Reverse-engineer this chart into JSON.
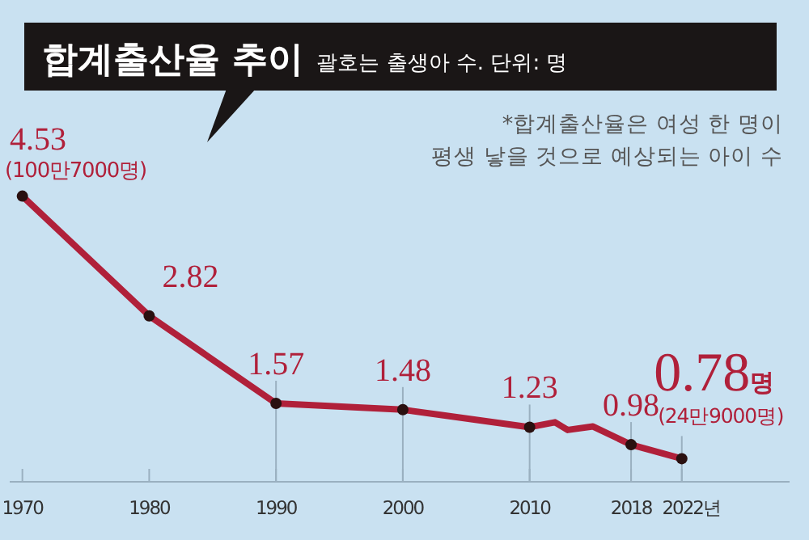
{
  "chart_data": {
    "type": "line",
    "title": "합계출산율 추이",
    "subtitle": "괄호는 출생아 수. 단위: 명",
    "x": [
      1970,
      1980,
      1990,
      2000,
      2010,
      2012,
      2013,
      2015,
      2018,
      2022
    ],
    "series": [
      {
        "color": "#b0203a",
        "values": [
          4.53,
          2.82,
          1.57,
          1.48,
          1.23,
          1.3,
          1.19,
          1.24,
          0.98,
          0.78
        ],
        "value_labels": [
          "4.53",
          "2.82",
          "1.57",
          "1.48",
          "1.23",
          null,
          null,
          null,
          "0.98",
          "0.78명"
        ]
      }
    ],
    "xlim": [
      1969,
      2030.5
    ],
    "xticks": [
      1970,
      1980,
      1990,
      2000,
      2010,
      2018,
      {
        "value": 2022,
        "label": "2022년"
      }
    ],
    "tick_labels": "x",
    "grid": false,
    "marker": "circle",
    "line_style": "solid",
    "annotations": [
      "*합계출산율은 여성 한 명이",
      "평생 낳을 것으로 예상되는 아이 수",
      {
        "text": "(100만7000명)",
        "x": 1970,
        "y": 4.53
      },
      {
        "text": "(24만9000명)",
        "x": 2022,
        "y": 0.78
      }
    ]
  }
}
